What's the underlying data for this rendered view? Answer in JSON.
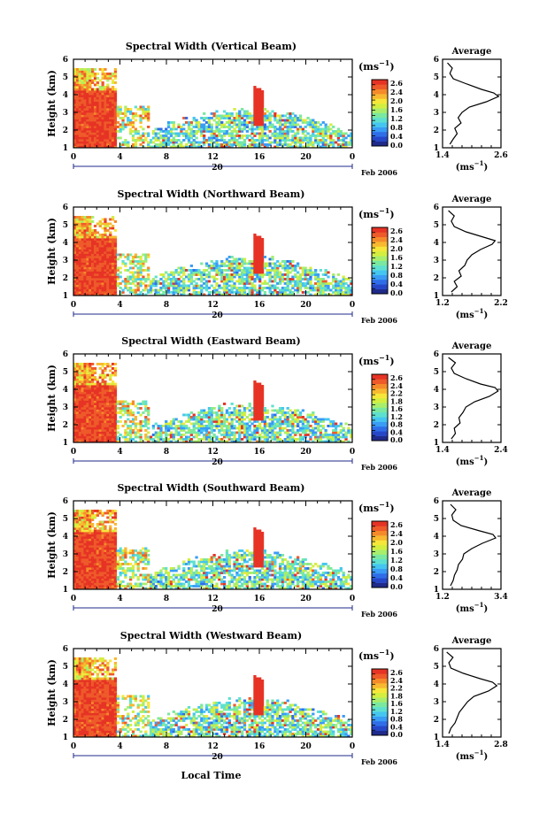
{
  "figure": {
    "xlabel_bottom": "Local Time",
    "date_label": "Feb 2006",
    "day_label": "20",
    "unit_label": "(ms",
    "unit_exp": "−1",
    "unit_close": ")",
    "profile_title": "Average"
  },
  "chart_data": [
    {
      "type": "heatmap",
      "title": "Spectral Width (Vertical Beam)",
      "ylabel": "Height (km)",
      "x_ticks": [
        "0",
        "4",
        "8",
        "12",
        "16",
        "20",
        "0"
      ],
      "y_ticks": [
        "1",
        "2",
        "3",
        "4",
        "5",
        "6"
      ],
      "xlim": [
        0,
        24
      ],
      "ylim": [
        1,
        6
      ],
      "colorbar_ticks": [
        "2.6",
        "2.4",
        "2.2",
        "2.0",
        "1.8",
        "1.6",
        "1.4",
        "1.2",
        "1.0",
        "0.8",
        "0.6",
        "0.4",
        "0.2",
        "0.0"
      ],
      "colorbar_labels": [
        "2.6",
        "2.4",
        "2.0",
        "1.6",
        "1.2",
        "0.8",
        "0.4",
        "0.0"
      ],
      "profile": {
        "xlabel": "(ms",
        "x_ticks": [
          "1.4",
          "2.6"
        ],
        "xlim": [
          1.4,
          2.6
        ],
        "y_ticks": [
          "1",
          "2",
          "3",
          "4",
          "5",
          "6"
        ],
        "height_km": [
          1.2,
          1.5,
          1.8,
          2.1,
          2.4,
          2.7,
          3.0,
          3.3,
          3.6,
          3.9,
          4.1,
          4.3,
          4.6,
          4.9,
          5.2,
          5.5,
          5.8
        ],
        "width": [
          1.55,
          1.62,
          1.7,
          1.65,
          1.78,
          1.72,
          1.8,
          1.95,
          2.3,
          2.55,
          2.45,
          2.2,
          1.9,
          1.62,
          1.55,
          1.6,
          1.5
        ]
      }
    },
    {
      "type": "heatmap",
      "title": "Spectral Width (Northward Beam)",
      "ylabel": "Height (km)",
      "x_ticks": [
        "0",
        "4",
        "8",
        "12",
        "16",
        "20",
        "0"
      ],
      "y_ticks": [
        "1",
        "2",
        "3",
        "4",
        "5",
        "6"
      ],
      "xlim": [
        0,
        24
      ],
      "ylim": [
        1,
        6
      ],
      "colorbar_ticks": [
        "2.6",
        "2.4",
        "2.2",
        "2.0",
        "1.8",
        "1.6",
        "1.4",
        "1.2",
        "1.0",
        "0.8",
        "0.6",
        "0.4",
        "0.2",
        "0.0"
      ],
      "colorbar_labels": [
        "2.6",
        "2.4",
        "2.0",
        "1.6",
        "1.2",
        "0.8",
        "0.4",
        "0.0"
      ],
      "profile": {
        "xlabel": "(ms",
        "x_ticks": [
          "1.2",
          "2.2"
        ],
        "xlim": [
          1.2,
          2.2
        ],
        "y_ticks": [
          "1",
          "2",
          "3",
          "4",
          "5",
          "6"
        ],
        "height_km": [
          1.2,
          1.5,
          1.8,
          2.1,
          2.4,
          2.7,
          3.0,
          3.3,
          3.6,
          3.9,
          4.1,
          4.3,
          4.6,
          4.9,
          5.2,
          5.5,
          5.8
        ],
        "width": [
          1.35,
          1.45,
          1.4,
          1.52,
          1.48,
          1.58,
          1.62,
          1.7,
          1.85,
          2.05,
          2.1,
          1.9,
          1.6,
          1.4,
          1.35,
          1.4,
          1.3
        ]
      }
    },
    {
      "type": "heatmap",
      "title": "Spectral Width (Eastward Beam)",
      "ylabel": "Height (km)",
      "x_ticks": [
        "0",
        "4",
        "8",
        "12",
        "16",
        "20",
        "0"
      ],
      "y_ticks": [
        "1",
        "2",
        "3",
        "4",
        "5",
        "6"
      ],
      "xlim": [
        0,
        24
      ],
      "ylim": [
        1,
        6
      ],
      "colorbar_ticks": [
        "2.6",
        "2.4",
        "2.2",
        "2.0",
        "1.8",
        "1.6",
        "1.4",
        "1.2",
        "1.0",
        "0.8",
        "0.6",
        "0.4",
        "0.2",
        "0.0"
      ],
      "colorbar_labels": [
        "2.6",
        "2.4",
        "2.2",
        "1.8",
        "1.6",
        "1.2",
        "0.8",
        "0.4",
        "0.0"
      ],
      "profile": {
        "xlabel": "(ms",
        "x_ticks": [
          "1.4",
          "2.4"
        ],
        "xlim": [
          1.4,
          2.4
        ],
        "y_ticks": [
          "1",
          "2",
          "3",
          "4",
          "5",
          "6"
        ],
        "height_km": [
          1.2,
          1.5,
          1.8,
          2.1,
          2.4,
          2.7,
          3.0,
          3.3,
          3.6,
          3.9,
          4.1,
          4.3,
          4.6,
          4.9,
          5.2,
          5.5,
          5.8
        ],
        "width": [
          1.55,
          1.62,
          1.6,
          1.7,
          1.68,
          1.75,
          1.8,
          1.95,
          2.2,
          2.35,
          2.3,
          2.05,
          1.8,
          1.6,
          1.55,
          1.62,
          1.5
        ]
      }
    },
    {
      "type": "heatmap",
      "title": "Spectral Width (Southward Beam)",
      "ylabel": "Height (km)",
      "x_ticks": [
        "0",
        "4",
        "8",
        "12",
        "16",
        "20",
        "0"
      ],
      "y_ticks": [
        "1",
        "2",
        "3",
        "4",
        "5",
        "6"
      ],
      "xlim": [
        0,
        24
      ],
      "ylim": [
        1,
        6
      ],
      "colorbar_ticks": [
        "2.6",
        "2.4",
        "2.2",
        "2.0",
        "1.8",
        "1.6",
        "1.4",
        "1.2",
        "1.0",
        "0.8",
        "0.6",
        "0.4",
        "0.2",
        "0.0"
      ],
      "colorbar_labels": [
        "2.6",
        "2.4",
        "2.0",
        "1.6",
        "1.2",
        "0.8",
        "0.4",
        "0.0"
      ],
      "profile": {
        "xlabel": "(ms",
        "x_ticks": [
          "1.2",
          "3.4"
        ],
        "xlim": [
          1.2,
          3.4
        ],
        "y_ticks": [
          "1",
          "2",
          "3",
          "4",
          "5",
          "6"
        ],
        "height_km": [
          1.2,
          1.5,
          1.8,
          2.1,
          2.4,
          2.7,
          3.0,
          3.3,
          3.6,
          3.9,
          4.1,
          4.3,
          4.6,
          4.9,
          5.2,
          5.5,
          5.8
        ],
        "width": [
          1.5,
          1.6,
          1.65,
          1.75,
          1.8,
          1.95,
          2.0,
          2.3,
          2.7,
          3.2,
          3.1,
          2.6,
          1.9,
          1.6,
          1.55,
          1.7,
          1.5
        ]
      }
    },
    {
      "type": "heatmap",
      "title": "Spectral Width (Westward Beam)",
      "ylabel": "Height (km)",
      "x_ticks": [
        "0",
        "4",
        "8",
        "12",
        "16",
        "20",
        "0"
      ],
      "y_ticks": [
        "1",
        "2",
        "3",
        "4",
        "5",
        "6"
      ],
      "xlim": [
        0,
        24
      ],
      "ylim": [
        1,
        6
      ],
      "colorbar_ticks": [
        "2.6",
        "2.4",
        "2.2",
        "2.0",
        "1.8",
        "1.6",
        "1.4",
        "1.2",
        "1.0",
        "0.8",
        "0.6",
        "0.4",
        "0.2",
        "0.0"
      ],
      "colorbar_labels": [
        "2.6",
        "2.4",
        "2.2",
        "1.8",
        "1.6",
        "1.2",
        "0.8",
        "0.4",
        "0.0"
      ],
      "profile": {
        "xlabel": "(ms",
        "x_ticks": [
          "1.4",
          "2.8"
        ],
        "xlim": [
          1.4,
          2.8
        ],
        "y_ticks": [
          "1",
          "2",
          "3",
          "4",
          "5",
          "6"
        ],
        "height_km": [
          1.2,
          1.5,
          1.8,
          2.1,
          2.4,
          2.7,
          3.0,
          3.3,
          3.6,
          3.9,
          4.1,
          4.3,
          4.6,
          4.9,
          5.2,
          5.5,
          5.8
        ],
        "width": [
          1.55,
          1.6,
          1.7,
          1.75,
          1.8,
          1.9,
          2.0,
          2.15,
          2.5,
          2.7,
          2.6,
          2.3,
          1.9,
          1.6,
          1.55,
          1.65,
          1.5
        ]
      }
    }
  ]
}
